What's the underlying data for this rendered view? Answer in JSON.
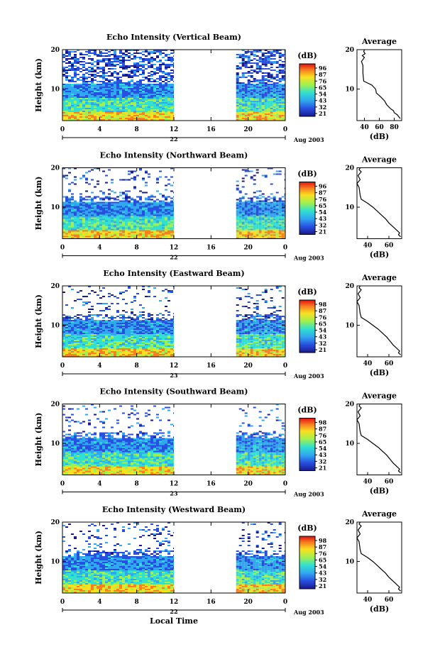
{
  "figure": {
    "xlabel": "Local Time",
    "date_label": "Aug 2003",
    "unit_label": "(dB)",
    "average_title": "Average",
    "average_xlabel": "(dB)"
  },
  "chart_data": [
    {
      "type": "heatmap",
      "title": "Echo Intensity (Vertical Beam)",
      "ylabel": "Height (km)",
      "x_ticks": [
        "0",
        "4",
        "8",
        "12",
        "16",
        "20",
        "0"
      ],
      "xlim": [
        0,
        24
      ],
      "y_ticks": [
        "20",
        "10"
      ],
      "ylim": [
        2,
        20
      ],
      "day_label": "22",
      "data_gap": [
        12,
        18.7
      ],
      "colorbar": {
        "label": "(dB)",
        "ticks": [
          "96",
          "87",
          "76",
          "65",
          "54",
          "43",
          "32",
          "21"
        ]
      },
      "average_profile": {
        "type": "line",
        "title": "Average",
        "xlabel": "(dB)",
        "x_ticks": [
          "40",
          "60",
          "80"
        ],
        "xlim": [
          30,
          90
        ],
        "y_ticks": [
          "20",
          "10"
        ],
        "ylim": [
          2,
          20
        ],
        "x": [
          40,
          39,
          41,
          37,
          40,
          36,
          38,
          38,
          39,
          50,
          55,
          56,
          62,
          67,
          70,
          75,
          79,
          80,
          84,
          86,
          88
        ],
        "y": [
          20,
          19.5,
          19,
          18.5,
          18,
          17,
          16,
          14,
          12,
          11,
          10,
          9,
          8,
          7,
          6,
          5,
          4.5,
          4,
          3.5,
          3,
          2.5
        ]
      }
    },
    {
      "type": "heatmap",
      "title": "Echo Intensity (Northward Beam)",
      "ylabel": "Height (km)",
      "x_ticks": [
        "0",
        "4",
        "8",
        "12",
        "16",
        "20",
        "0"
      ],
      "xlim": [
        0,
        24
      ],
      "y_ticks": [
        "20",
        "10"
      ],
      "ylim": [
        2,
        20
      ],
      "day_label": "22",
      "data_gap": [
        12,
        18.7
      ],
      "colorbar": {
        "label": "(dB)",
        "ticks": [
          "96",
          "87",
          "76",
          "65",
          "54",
          "43",
          "32",
          "21"
        ]
      },
      "average_profile": {
        "type": "line",
        "title": "Average",
        "xlabel": "(dB)",
        "x_ticks": [
          "40",
          "60"
        ],
        "xlim": [
          30,
          72
        ],
        "y_ticks": [
          "20",
          "10"
        ],
        "ylim": [
          2,
          20
        ],
        "x": [
          33,
          32,
          34,
          31,
          33,
          30,
          32,
          33,
          34,
          40,
          45,
          49,
          53,
          57,
          60,
          64,
          66,
          68,
          70,
          69,
          71
        ],
        "y": [
          20,
          19.5,
          19,
          18,
          17,
          16,
          15,
          13,
          12,
          11,
          10,
          9,
          8,
          7,
          6,
          5,
          4.5,
          4,
          3.5,
          3,
          2.5
        ]
      }
    },
    {
      "type": "heatmap",
      "title": "Echo Intensity (Eastward Beam)",
      "ylabel": "Height (km)",
      "x_ticks": [
        "0",
        "4",
        "8",
        "12",
        "16",
        "20",
        "0"
      ],
      "xlim": [
        0,
        24
      ],
      "y_ticks": [
        "20",
        "10"
      ],
      "ylim": [
        2,
        20
      ],
      "day_label": "23",
      "data_gap": [
        12,
        18.7
      ],
      "colorbar": {
        "label": "(dB)",
        "ticks": [
          "98",
          "87",
          "76",
          "65",
          "54",
          "43",
          "32",
          "21"
        ]
      },
      "average_profile": {
        "type": "line",
        "title": "Average",
        "xlabel": "(dB)",
        "x_ticks": [
          "40",
          "60"
        ],
        "xlim": [
          30,
          72
        ],
        "y_ticks": [
          "20",
          "10"
        ],
        "ylim": [
          2,
          20
        ],
        "x": [
          33,
          32,
          34,
          31,
          33,
          30,
          32,
          33,
          34,
          40,
          45,
          50,
          54,
          58,
          61,
          64,
          66,
          68,
          70,
          69,
          71
        ],
        "y": [
          20,
          19.5,
          19,
          18,
          17,
          16,
          15,
          13,
          12,
          11,
          10,
          9,
          8,
          7,
          6,
          5,
          4.5,
          4,
          3.5,
          3,
          2.5
        ]
      }
    },
    {
      "type": "heatmap",
      "title": "Echo Intensity (Southward Beam)",
      "ylabel": "Height (km)",
      "x_ticks": [
        "0",
        "4",
        "8",
        "12",
        "16",
        "20",
        "0"
      ],
      "xlim": [
        0,
        24
      ],
      "y_ticks": [
        "20",
        "10"
      ],
      "ylim": [
        2,
        20
      ],
      "day_label": "23",
      "data_gap": [
        12,
        18.7
      ],
      "colorbar": {
        "label": "(dB)",
        "ticks": [
          "98",
          "87",
          "76",
          "65",
          "54",
          "43",
          "32",
          "21"
        ]
      },
      "average_profile": {
        "type": "line",
        "title": "Average",
        "xlabel": "(dB)",
        "x_ticks": [
          "40",
          "60"
        ],
        "xlim": [
          30,
          72
        ],
        "y_ticks": [
          "20",
          "10"
        ],
        "ylim": [
          2,
          20
        ],
        "x": [
          33,
          32,
          34,
          31,
          33,
          30,
          32,
          33,
          34,
          40,
          45,
          50,
          54,
          58,
          61,
          64,
          66,
          68,
          70,
          69,
          71
        ],
        "y": [
          20,
          19.5,
          19,
          18,
          17,
          16,
          15,
          13,
          12,
          11,
          10,
          9,
          8,
          7,
          6,
          5,
          4.5,
          4,
          3.5,
          3,
          2.5
        ]
      }
    },
    {
      "type": "heatmap",
      "title": "Echo Intensity (Westward Beam)",
      "ylabel": "Height (km)",
      "x_ticks": [
        "0",
        "4",
        "8",
        "12",
        "16",
        "20",
        "0"
      ],
      "xlim": [
        0,
        24
      ],
      "y_ticks": [
        "20",
        "10"
      ],
      "ylim": [
        2,
        20
      ],
      "day_label": "22",
      "data_gap": [
        12,
        18.7
      ],
      "colorbar": {
        "label": "(dB)",
        "ticks": [
          "98",
          "87",
          "76",
          "65",
          "54",
          "43",
          "32",
          "21"
        ]
      },
      "average_profile": {
        "type": "line",
        "title": "Average",
        "xlabel": "(dB)",
        "x_ticks": [
          "40",
          "60"
        ],
        "xlim": [
          30,
          72
        ],
        "y_ticks": [
          "20",
          "10"
        ],
        "ylim": [
          2,
          20
        ],
        "x": [
          33,
          32,
          34,
          31,
          33,
          30,
          32,
          33,
          34,
          40,
          45,
          49,
          53,
          57,
          60,
          64,
          66,
          68,
          70,
          69,
          71
        ],
        "y": [
          20,
          19.5,
          19,
          18,
          17,
          16,
          15,
          13,
          12,
          11,
          10,
          9,
          8,
          7,
          6,
          5,
          4.5,
          4,
          3.5,
          3,
          2.5
        ]
      }
    }
  ]
}
